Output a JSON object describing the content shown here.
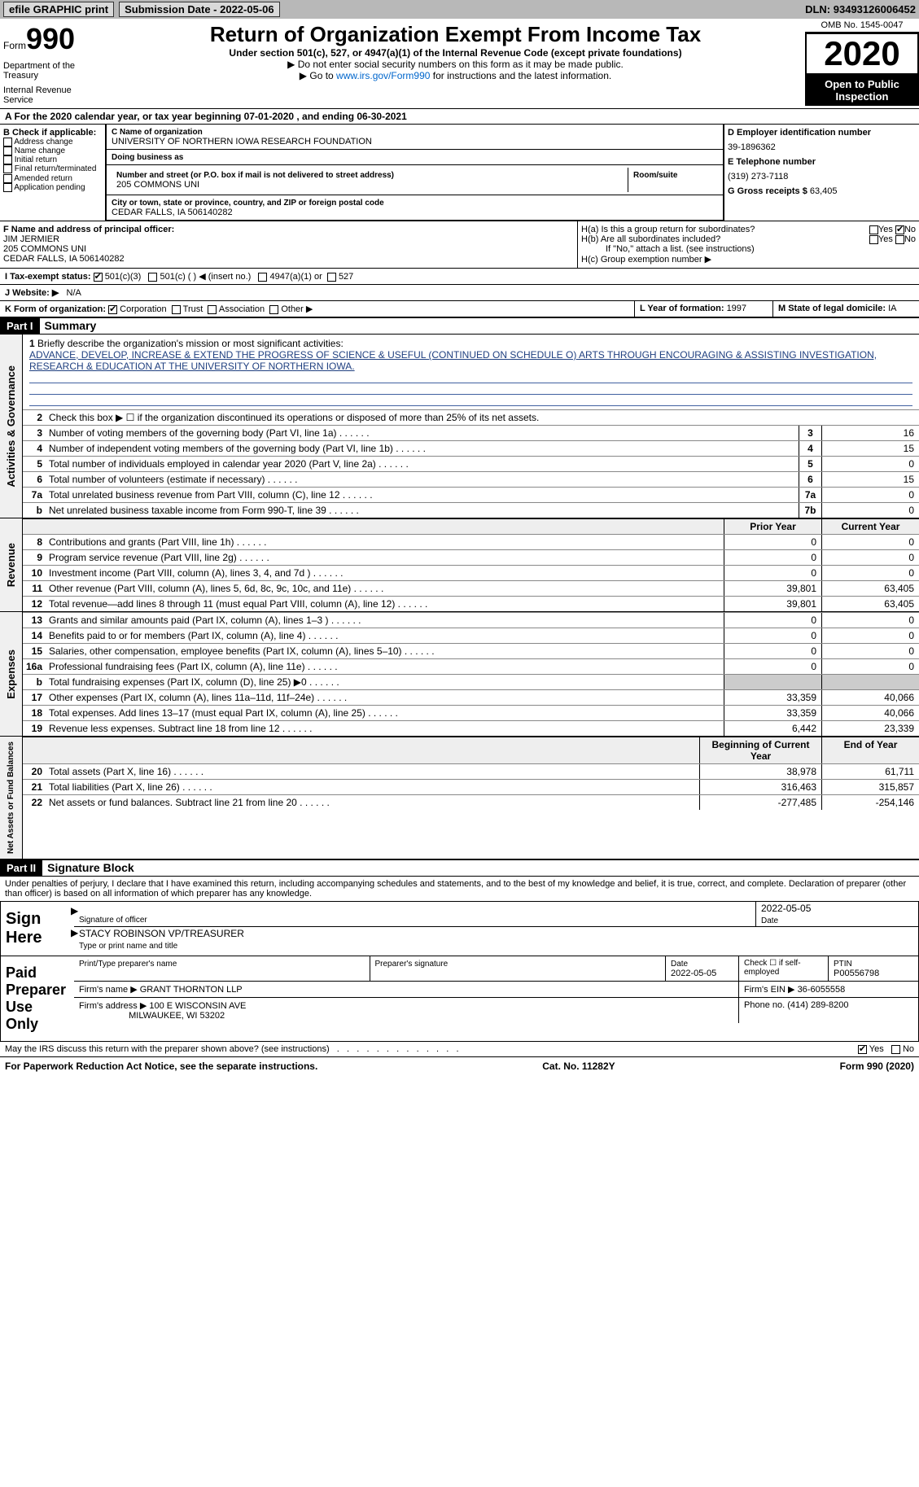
{
  "top": {
    "efile": "efile GRAPHIC print",
    "sub_label": "Submission Date - ",
    "sub_date": "2022-05-06",
    "dln_label": "DLN: ",
    "dln": "93493126006452"
  },
  "header": {
    "form_word": "Form",
    "form_num": "990",
    "dept1": "Department of the Treasury",
    "dept2": "Internal Revenue Service",
    "title": "Return of Organization Exempt From Income Tax",
    "sub": "Under section 501(c), 527, or 4947(a)(1) of the Internal Revenue Code (except private foundations)",
    "arrow1": "▶ Do not enter social security numbers on this form as it may be made public.",
    "arrow2_pre": "▶ Go to ",
    "arrow2_link": "www.irs.gov/Form990",
    "arrow2_post": " for instructions and the latest information.",
    "omb": "OMB No. 1545-0047",
    "year": "2020",
    "open": "Open to Public Inspection"
  },
  "period": "A For the 2020 calendar year, or tax year beginning 07-01-2020   , and ending 06-30-2021",
  "sectionB": {
    "hd": "B Check if applicable:",
    "items": [
      "Address change",
      "Name change",
      "Initial return",
      "Final return/terminated",
      "Amended return",
      "Application pending"
    ]
  },
  "sectionC": {
    "name_lbl": "C Name of organization",
    "name": "UNIVERSITY OF NORTHERN IOWA RESEARCH FOUNDATION",
    "dba_lbl": "Doing business as",
    "addr_lbl": "Number and street (or P.O. box if mail is not delivered to street address)",
    "room_lbl": "Room/suite",
    "addr": "205 COMMONS UNI",
    "city_lbl": "City or town, state or province, country, and ZIP or foreign postal code",
    "city": "CEDAR FALLS, IA  506140282"
  },
  "sectionD": {
    "ein_lbl": "D Employer identification number",
    "ein": "39-1896362",
    "tel_lbl": "E Telephone number",
    "tel": "(319) 273-7118",
    "gross_lbl": "G Gross receipts $ ",
    "gross": "63,405"
  },
  "sectionF": {
    "lbl": "F Name and address of principal officer:",
    "name": "JIM JERMIER",
    "addr1": "205 COMMONS UNI",
    "addr2": "CEDAR FALLS, IA  506140282"
  },
  "sectionH": {
    "ha": "H(a)  Is this a group return for subordinates?",
    "hb": "H(b)  Are all subordinates included?",
    "hb_note": "If \"No,\" attach a list. (see instructions)",
    "hc": "H(c)  Group exemption number ▶",
    "yes": "Yes",
    "no": "No"
  },
  "sectionI": {
    "lbl": "I  Tax-exempt status:",
    "c3": "501(c)(3)",
    "c": "501(c) (   ) ◀ (insert no.)",
    "a1": "4947(a)(1) or",
    "s527": "527"
  },
  "sectionJ": {
    "lbl": "J  Website: ▶",
    "val": "N/A"
  },
  "sectionK": {
    "lbl": "K Form of organization:",
    "corp": "Corporation",
    "trust": "Trust",
    "assoc": "Association",
    "other": "Other ▶"
  },
  "sectionL": {
    "lbl": "L Year of formation: ",
    "val": "1997"
  },
  "sectionM": {
    "lbl": "M State of legal domicile: ",
    "val": "IA"
  },
  "part1": {
    "hdr": "Part I",
    "title": "Summary",
    "q1_lbl": "1",
    "q1": "Briefly describe the organization's mission or most significant activities:",
    "mission": "ADVANCE, DEVELOP, INCREASE & EXTEND THE PROGRESS OF SCIENCE & USEFUL (CONTINUED ON SCHEDULE O) ARTS THROUGH ENCOURAGING & ASSISTING INVESTIGATION, RESEARCH & EDUCATION AT THE UNIVERSITY OF NORTHERN IOWA.",
    "q2": "Check this box ▶ ☐  if the organization discontinued its operations or disposed of more than 25% of its net assets.",
    "gov_label": "Activities & Governance",
    "rev_label": "Revenue",
    "exp_label": "Expenses",
    "net_label": "Net Assets or Fund Balances",
    "prior": "Prior Year",
    "current": "Current Year",
    "begin": "Beginning of Current Year",
    "end": "End of Year",
    "gov_rows": [
      {
        "n": "3",
        "t": "Number of voting members of the governing body (Part VI, line 1a)",
        "rn": "3",
        "v": "16"
      },
      {
        "n": "4",
        "t": "Number of independent voting members of the governing body (Part VI, line 1b)",
        "rn": "4",
        "v": "15"
      },
      {
        "n": "5",
        "t": "Total number of individuals employed in calendar year 2020 (Part V, line 2a)",
        "rn": "5",
        "v": "0"
      },
      {
        "n": "6",
        "t": "Total number of volunteers (estimate if necessary)",
        "rn": "6",
        "v": "15"
      },
      {
        "n": "7a",
        "t": "Total unrelated business revenue from Part VIII, column (C), line 12",
        "rn": "7a",
        "v": "0"
      },
      {
        "n": "b",
        "t": "Net unrelated business taxable income from Form 990-T, line 39",
        "rn": "7b",
        "v": "0"
      }
    ],
    "rev_rows": [
      {
        "n": "8",
        "t": "Contributions and grants (Part VIII, line 1h)",
        "p": "0",
        "c": "0"
      },
      {
        "n": "9",
        "t": "Program service revenue (Part VIII, line 2g)",
        "p": "0",
        "c": "0"
      },
      {
        "n": "10",
        "t": "Investment income (Part VIII, column (A), lines 3, 4, and 7d )",
        "p": "0",
        "c": "0"
      },
      {
        "n": "11",
        "t": "Other revenue (Part VIII, column (A), lines 5, 6d, 8c, 9c, 10c, and 11e)",
        "p": "39,801",
        "c": "63,405"
      },
      {
        "n": "12",
        "t": "Total revenue—add lines 8 through 11 (must equal Part VIII, column (A), line 12)",
        "p": "39,801",
        "c": "63,405"
      }
    ],
    "exp_rows": [
      {
        "n": "13",
        "t": "Grants and similar amounts paid (Part IX, column (A), lines 1–3 )",
        "p": "0",
        "c": "0"
      },
      {
        "n": "14",
        "t": "Benefits paid to or for members (Part IX, column (A), line 4)",
        "p": "0",
        "c": "0"
      },
      {
        "n": "15",
        "t": "Salaries, other compensation, employee benefits (Part IX, column (A), lines 5–10)",
        "p": "0",
        "c": "0"
      },
      {
        "n": "16a",
        "t": "Professional fundraising fees (Part IX, column (A), line 11e)",
        "p": "0",
        "c": "0"
      },
      {
        "n": "b",
        "t": "Total fundraising expenses (Part IX, column (D), line 25) ▶0",
        "p": "",
        "c": "",
        "shaded": true
      },
      {
        "n": "17",
        "t": "Other expenses (Part IX, column (A), lines 11a–11d, 11f–24e)",
        "p": "33,359",
        "c": "40,066"
      },
      {
        "n": "18",
        "t": "Total expenses. Add lines 13–17 (must equal Part IX, column (A), line 25)",
        "p": "33,359",
        "c": "40,066"
      },
      {
        "n": "19",
        "t": "Revenue less expenses. Subtract line 18 from line 12",
        "p": "6,442",
        "c": "23,339"
      }
    ],
    "net_rows": [
      {
        "n": "20",
        "t": "Total assets (Part X, line 16)",
        "p": "38,978",
        "c": "61,711"
      },
      {
        "n": "21",
        "t": "Total liabilities (Part X, line 26)",
        "p": "316,463",
        "c": "315,857"
      },
      {
        "n": "22",
        "t": "Net assets or fund balances. Subtract line 21 from line 20",
        "p": "-277,485",
        "c": "-254,146"
      }
    ]
  },
  "part2": {
    "hdr": "Part II",
    "title": "Signature Block",
    "decl": "Under penalties of perjury, I declare that I have examined this return, including accompanying schedules and statements, and to the best of my knowledge and belief, it is true, correct, and complete. Declaration of preparer (other than officer) is based on all information of which preparer has any knowledge.",
    "sign_here": "Sign Here",
    "sig_officer": "Signature of officer",
    "sig_date": "2022-05-05",
    "date_lbl": "Date",
    "officer_name": "STACY ROBINSON  VP/TREASURER",
    "type_name": "Type or print name and title",
    "paid": "Paid Preparer Use Only",
    "p_name_lbl": "Print/Type preparer's name",
    "p_sig_lbl": "Preparer's signature",
    "p_date_lbl": "Date",
    "p_date": "2022-05-05",
    "p_check": "Check ☐ if self-employed",
    "ptin_lbl": "PTIN",
    "ptin": "P00556798",
    "firm_name_lbl": "Firm's name    ▶ ",
    "firm_name": "GRANT THORNTON LLP",
    "firm_ein_lbl": "Firm's EIN ▶ ",
    "firm_ein": "36-6055558",
    "firm_addr_lbl": "Firm's address ▶ ",
    "firm_addr": "100 E WISCONSIN AVE",
    "firm_city": "MILWAUKEE, WI  53202",
    "phone_lbl": "Phone no. ",
    "phone": "(414) 289-8200",
    "may_irs": "May the IRS discuss this return with the preparer shown above? (see instructions)",
    "yes": "Yes",
    "no": "No"
  },
  "footer": {
    "left": "For Paperwork Reduction Act Notice, see the separate instructions.",
    "mid": "Cat. No. 11282Y",
    "right": "Form 990 (2020)"
  }
}
